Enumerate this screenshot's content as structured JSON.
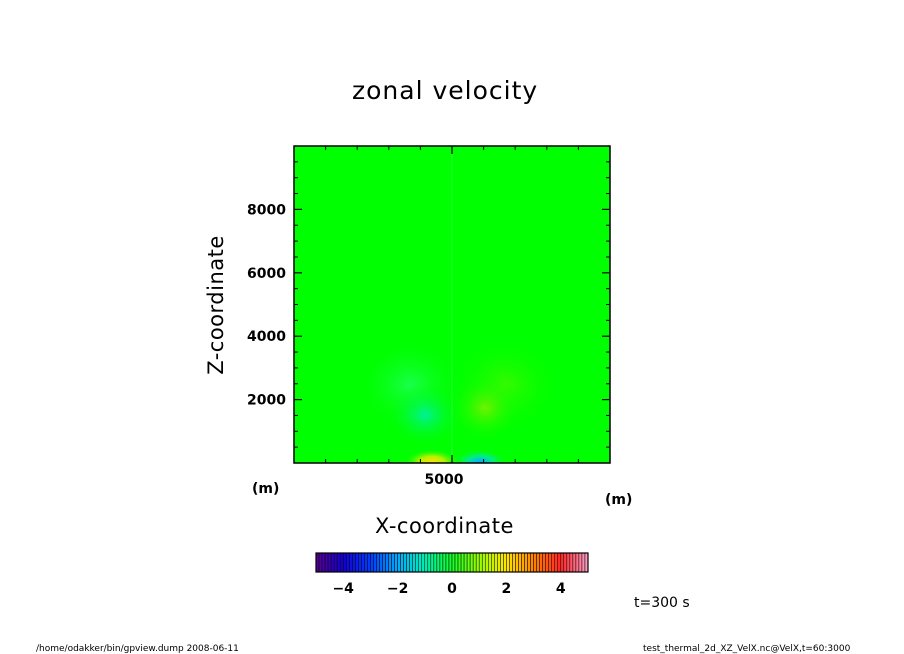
{
  "chart_data": {
    "type": "heatmap",
    "title": "zonal velocity",
    "xlabel": "X-coordinate",
    "ylabel": "Z-coordinate",
    "x_unit": "(m)",
    "y_unit": "(m)",
    "xlim": [
      0,
      10000
    ],
    "ylim": [
      0,
      10000
    ],
    "x_ticks": [
      5000
    ],
    "y_ticks": [
      2000,
      4000,
      6000,
      8000
    ],
    "field_description_values": {
      "background": 0,
      "features": [
        {
          "x": 4000,
          "z": 100,
          "value": 2.2
        },
        {
          "x": 5700,
          "z": 100,
          "value": -2.2
        },
        {
          "x": 3000,
          "z": 2500,
          "value": -0.5
        },
        {
          "x": 6500,
          "z": 2500,
          "value": 0.5
        },
        {
          "x": 4200,
          "z": 1300,
          "value": -1.0
        },
        {
          "x": 5800,
          "z": 1300,
          "value": 0.9
        }
      ]
    },
    "colorbar": {
      "range": [
        -5,
        5
      ],
      "ticks": [
        -4,
        -2,
        0,
        2,
        4
      ],
      "tick_labels": [
        "-4",
        "-2",
        "0",
        "2",
        "4"
      ]
    }
  },
  "annotation": {
    "time": "t=300 s"
  },
  "footer": {
    "left": "/home/odakker/bin/gpview.dump  2008-06-11",
    "right": "test_thermal_2d_XZ_VelX.nc@VelX,t=60:3000"
  },
  "colors": {
    "zero": "#00ff00",
    "negative_max": "#00a0ff",
    "positive_max": "#ffd800"
  }
}
